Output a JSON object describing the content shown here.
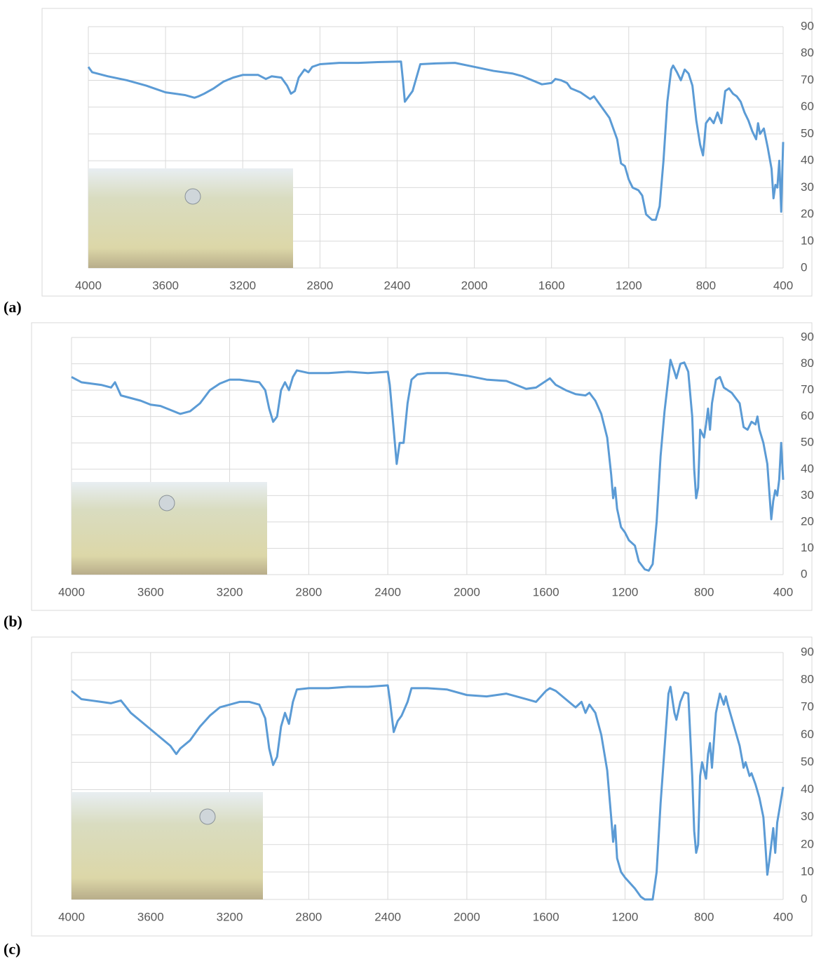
{
  "chart_data": [
    {
      "type": "line",
      "panel_label": "(a)",
      "color": "#5b9bd5",
      "grid": true,
      "xlim": [
        4000,
        400
      ],
      "ylim": [
        0,
        90
      ],
      "xticks": [
        4000,
        3600,
        3200,
        2800,
        2400,
        2000,
        1600,
        1200,
        800,
        400
      ],
      "yticks": [
        0,
        10,
        20,
        30,
        40,
        50,
        60,
        70,
        80,
        90
      ],
      "x": [
        4000,
        3980,
        3900,
        3800,
        3700,
        3600,
        3500,
        3450,
        3430,
        3400,
        3350,
        3300,
        3250,
        3200,
        3120,
        3080,
        3050,
        3000,
        2970,
        2950,
        2930,
        2910,
        2880,
        2860,
        2840,
        2800,
        2700,
        2600,
        2500,
        2380,
        2370,
        2360,
        2340,
        2320,
        2300,
        2280,
        2200,
        2100,
        2000,
        1900,
        1800,
        1750,
        1700,
        1650,
        1600,
        1580,
        1550,
        1520,
        1500,
        1450,
        1400,
        1380,
        1350,
        1300,
        1260,
        1240,
        1220,
        1200,
        1180,
        1150,
        1130,
        1110,
        1080,
        1060,
        1040,
        1020,
        1000,
        980,
        970,
        950,
        930,
        910,
        890,
        870,
        850,
        830,
        815,
        800,
        780,
        760,
        740,
        720,
        700,
        680,
        660,
        640,
        620,
        600,
        580,
        560,
        540,
        530,
        520,
        500,
        480,
        460,
        450,
        440,
        430,
        420,
        410,
        400
      ],
      "values": [
        75,
        73,
        71.5,
        70,
        68,
        65.5,
        64.5,
        63.5,
        64,
        65,
        67,
        69.5,
        71,
        72,
        72,
        70.5,
        71.5,
        71,
        68,
        65,
        66,
        71,
        74,
        73,
        75,
        76,
        76.5,
        76.5,
        76.8,
        77,
        70,
        62,
        64,
        66,
        71,
        76,
        76.3,
        76.5,
        75,
        73.5,
        72.5,
        71.5,
        70,
        68.5,
        69,
        70.5,
        70,
        69,
        67,
        65.5,
        63,
        64,
        61,
        56,
        48,
        39,
        38,
        33,
        30,
        29,
        27,
        20,
        18,
        18,
        23,
        40,
        62,
        74,
        75.5,
        73,
        70,
        74,
        72.5,
        68,
        55,
        46,
        42,
        54,
        56,
        54,
        58,
        54,
        66,
        67,
        65,
        64,
        62,
        58,
        55,
        51,
        48,
        54,
        50,
        52,
        45,
        37,
        26,
        31,
        30,
        40,
        21,
        47
      ]
    },
    {
      "type": "line",
      "panel_label": "(b)",
      "color": "#5b9bd5",
      "grid": true,
      "xlim": [
        4000,
        400
      ],
      "ylim": [
        0,
        90
      ],
      "xticks": [
        4000,
        3600,
        3200,
        2800,
        2400,
        2000,
        1600,
        1200,
        800,
        400
      ],
      "yticks": [
        0,
        10,
        20,
        30,
        40,
        50,
        60,
        70,
        80,
        90
      ],
      "x": [
        4000,
        3950,
        3900,
        3850,
        3800,
        3780,
        3750,
        3700,
        3650,
        3600,
        3550,
        3500,
        3450,
        3400,
        3350,
        3300,
        3250,
        3200,
        3150,
        3100,
        3050,
        3020,
        3000,
        2980,
        2960,
        2940,
        2920,
        2900,
        2880,
        2860,
        2800,
        2700,
        2600,
        2500,
        2400,
        2390,
        2370,
        2355,
        2340,
        2320,
        2300,
        2280,
        2250,
        2200,
        2100,
        2000,
        1900,
        1800,
        1750,
        1700,
        1650,
        1600,
        1580,
        1550,
        1500,
        1450,
        1400,
        1380,
        1350,
        1320,
        1290,
        1270,
        1260,
        1250,
        1240,
        1220,
        1200,
        1180,
        1150,
        1130,
        1100,
        1080,
        1060,
        1040,
        1020,
        1000,
        980,
        970,
        950,
        940,
        920,
        900,
        880,
        860,
        850,
        840,
        830,
        820,
        800,
        790,
        780,
        770,
        760,
        740,
        720,
        700,
        680,
        660,
        640,
        620,
        600,
        580,
        560,
        540,
        530,
        520,
        500,
        480,
        460,
        450,
        440,
        430,
        420,
        410,
        400
      ],
      "values": [
        75,
        73,
        72.5,
        72,
        71,
        73,
        68,
        67,
        66,
        64.5,
        64,
        62.5,
        61,
        62,
        65,
        70,
        72.5,
        74,
        74,
        73.5,
        73,
        70,
        63,
        58,
        60,
        70,
        73,
        70,
        75,
        77.5,
        76.5,
        76.5,
        77,
        76.5,
        77,
        72,
        55,
        42,
        50,
        50,
        65,
        74,
        76,
        76.5,
        76.5,
        75.5,
        74,
        73.5,
        72,
        70.5,
        71,
        73.5,
        74.5,
        72,
        70,
        68.5,
        68,
        69,
        66,
        61,
        52,
        38,
        29,
        33,
        25,
        18,
        16,
        13,
        11,
        5,
        2,
        1.5,
        4,
        20,
        45,
        62,
        75,
        81.5,
        77,
        74.5,
        80,
        80.5,
        77,
        60,
        40,
        29,
        33,
        55,
        52,
        57,
        63,
        55,
        65,
        74,
        75,
        71,
        70,
        69,
        67,
        65,
        56,
        55,
        58,
        57,
        60,
        55,
        50,
        42,
        21,
        28,
        32,
        30,
        36,
        50,
        36
      ]
    },
    {
      "type": "line",
      "panel_label": "(c)",
      "color": "#5b9bd5",
      "grid": true,
      "xlim": [
        4000,
        400
      ],
      "ylim": [
        0,
        90
      ],
      "xticks": [
        4000,
        3600,
        3200,
        2800,
        2400,
        2000,
        1600,
        1200,
        800,
        400
      ],
      "yticks": [
        0,
        10,
        20,
        30,
        40,
        50,
        60,
        70,
        80,
        90
      ],
      "x": [
        4000,
        3950,
        3900,
        3850,
        3800,
        3750,
        3700,
        3650,
        3600,
        3550,
        3500,
        3470,
        3450,
        3400,
        3350,
        3300,
        3250,
        3200,
        3150,
        3100,
        3050,
        3020,
        3000,
        2980,
        2960,
        2940,
        2920,
        2900,
        2880,
        2860,
        2800,
        2700,
        2600,
        2500,
        2400,
        2390,
        2370,
        2350,
        2330,
        2300,
        2280,
        2200,
        2100,
        2000,
        1900,
        1800,
        1700,
        1650,
        1600,
        1580,
        1550,
        1500,
        1450,
        1420,
        1400,
        1380,
        1350,
        1320,
        1290,
        1270,
        1260,
        1250,
        1240,
        1220,
        1200,
        1150,
        1120,
        1100,
        1080,
        1060,
        1040,
        1020,
        1000,
        980,
        970,
        950,
        940,
        920,
        900,
        880,
        860,
        850,
        840,
        830,
        820,
        810,
        790,
        780,
        770,
        760,
        740,
        720,
        700,
        690,
        680,
        660,
        640,
        620,
        600,
        590,
        570,
        560,
        540,
        520,
        500,
        490,
        480,
        470,
        460,
        450,
        440,
        430,
        400
      ],
      "values": [
        76,
        73,
        72.5,
        72,
        71.5,
        72.5,
        68,
        65,
        62,
        59,
        56,
        53,
        55,
        58,
        63,
        67,
        70,
        71,
        72,
        72,
        71,
        66,
        55,
        49,
        52,
        63,
        68,
        64,
        72,
        76.5,
        77,
        77,
        77.5,
        77.5,
        78,
        73,
        61,
        65,
        67,
        72,
        77,
        77,
        76.5,
        74.5,
        74,
        75,
        73,
        72,
        76,
        77,
        76,
        73,
        70,
        72,
        68,
        71,
        68,
        60,
        47,
        30,
        21,
        27,
        15,
        10,
        8,
        4,
        1,
        0,
        0,
        0,
        10,
        35,
        55,
        75,
        77.5,
        68,
        65.5,
        72,
        75.5,
        75,
        45,
        25,
        17,
        20,
        45,
        50,
        44,
        53,
        57,
        48,
        68,
        75,
        71,
        74,
        71,
        66,
        61,
        56,
        48,
        50,
        45,
        46,
        42,
        37,
        30,
        20,
        9,
        14,
        20,
        26,
        17,
        28,
        41
      ]
    }
  ]
}
